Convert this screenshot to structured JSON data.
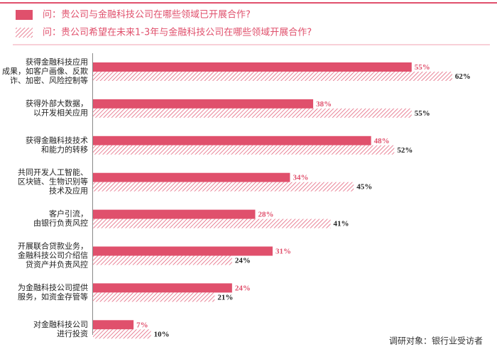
{
  "chart_data": {
    "type": "bar",
    "orientation": "horizontal",
    "categories": [
      [
        "获得金融科技应用",
        "成果，如客户画像、反欺",
        "诈、加密、风险控制等"
      ],
      [
        "获得外部大数据，",
        "以开发相关应用"
      ],
      [
        "获得金融科技技术",
        "和能力的转移"
      ],
      [
        "共同开发人工智能、",
        "区块链、生物识别等",
        "技术及应用"
      ],
      [
        "客户引流，",
        "由银行负责风控"
      ],
      [
        "开展联合贷款业务，",
        "金融科技公司介绍信",
        "贷资产并负责风控"
      ],
      [
        "为金融科技公司提供",
        "服务，如资金存管等"
      ],
      [
        "对金融科技公司",
        "进行投资"
      ]
    ],
    "series": [
      {
        "name": "问：贵公司与金融科技公司在哪些领域已开展合作?",
        "color": "#e0506c",
        "fill": "solid",
        "values": [
          55,
          38,
          48,
          34,
          28,
          31,
          24,
          7
        ],
        "value_labels": [
          "55%",
          "38%",
          "48%",
          "34%",
          "28%",
          "31%",
          "24%",
          "7%"
        ]
      },
      {
        "name": "问：贵公司希望在未来1-3年与金融科技公司在哪些领域开展合作?",
        "color": "#e0506c",
        "fill": "hatch",
        "values": [
          62,
          55,
          52,
          45,
          41,
          24,
          21,
          10
        ],
        "value_labels": [
          "62%",
          "55%",
          "52%",
          "45%",
          "41%",
          "24%",
          "21%",
          "10%"
        ]
      }
    ],
    "footnote": "调研对象：银行业受访者"
  }
}
